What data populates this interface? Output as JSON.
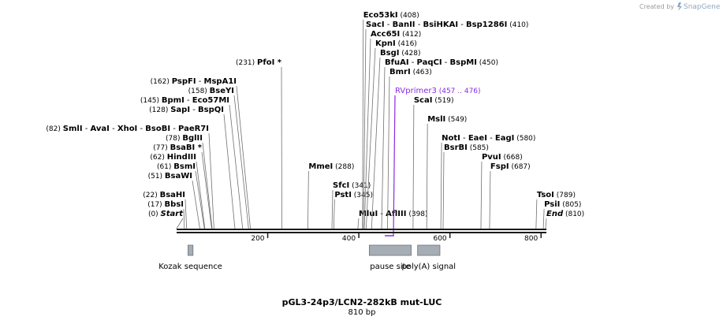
{
  "credit": {
    "prefix": "Created by",
    "brand": "SnapGene"
  },
  "title": "pGL3-24p3/LCN2-282kB mut-LUC",
  "length_label": "810 bp",
  "sequence": {
    "total": 810
  },
  "ticks": [
    200,
    400,
    600,
    800
  ],
  "sites": [
    {
      "names": [
        "Start"
      ],
      "pos": "(0)",
      "bp": 0,
      "row": 0,
      "num_first": true,
      "italic": true
    },
    {
      "names": [
        "BbsI"
      ],
      "pos": "(17)",
      "bp": 17,
      "row": 1,
      "num_first": true
    },
    {
      "names": [
        "BsaHI"
      ],
      "pos": "(22)",
      "bp": 22,
      "row": 2,
      "num_first": true
    },
    {
      "names": [
        "BsaWI"
      ],
      "pos": "(51)",
      "bp": 51,
      "row": 4,
      "num_first": true
    },
    {
      "names": [
        "BsmI"
      ],
      "pos": "(61)",
      "bp": 61,
      "row": 5,
      "num_first": true
    },
    {
      "names": [
        "HindIII"
      ],
      "pos": "(62)",
      "bp": 62,
      "row": 6,
      "num_first": true
    },
    {
      "names": [
        "BsaBI *"
      ],
      "pos": "(77)",
      "bp": 77,
      "row": 7,
      "num_first": true
    },
    {
      "names": [
        "BglII"
      ],
      "pos": "(78)",
      "bp": 78,
      "row": 8,
      "num_first": true
    },
    {
      "names": [
        "SmlI",
        "AvaI",
        "XhoI",
        "BsoBI",
        "PaeR7I"
      ],
      "pos": "(82)",
      "bp": 82,
      "row": 9,
      "num_first": true
    },
    {
      "names": [
        "SapI",
        "BspQI"
      ],
      "pos": "(128)",
      "bp": 128,
      "row": 11,
      "num_first": true
    },
    {
      "names": [
        "BpmI",
        "Eco57MI"
      ],
      "pos": "(145)",
      "bp": 145,
      "row": 12,
      "num_first": true
    },
    {
      "names": [
        "BseYI"
      ],
      "pos": "(158)",
      "bp": 158,
      "row": 13,
      "num_first": true
    },
    {
      "names": [
        "PspFI",
        "MspA1I"
      ],
      "pos": "(162)",
      "bp": 162,
      "row": 14,
      "num_first": true
    },
    {
      "names": [
        "PfoI *"
      ],
      "pos": "(231)",
      "bp": 231,
      "row": 16,
      "num_first": true
    },
    {
      "names": [
        "MmeI"
      ],
      "pos": "(288)",
      "bp": 288,
      "row": 5,
      "num_first": false
    },
    {
      "names": [
        "SfcI"
      ],
      "pos": "(341)",
      "bp": 341,
      "row": 3,
      "num_first": false
    },
    {
      "names": [
        "PstI"
      ],
      "pos": "(345)",
      "bp": 345,
      "row": 2,
      "num_first": false
    },
    {
      "names": [
        "MluI",
        "AflIII"
      ],
      "pos": "(398)",
      "bp": 398,
      "row": 0,
      "num_first": false
    },
    {
      "names": [
        "Eco53kI"
      ],
      "pos": "(408)",
      "bp": 408,
      "row": 21,
      "num_first": false
    },
    {
      "names": [
        "SacI",
        "BanII",
        "BsiHKAI",
        "Bsp1286I"
      ],
      "pos": "(410)",
      "bp": 410,
      "row": 20,
      "num_first": false
    },
    {
      "names": [
        "Acc65I"
      ],
      "pos": "(412)",
      "bp": 412,
      "row": 19,
      "num_first": false
    },
    {
      "names": [
        "KpnI"
      ],
      "pos": "(416)",
      "bp": 416,
      "row": 18,
      "num_first": false
    },
    {
      "names": [
        "BsgI"
      ],
      "pos": "(428)",
      "bp": 428,
      "row": 17,
      "num_first": false
    },
    {
      "names": [
        "BfuAI",
        "PaqCI",
        "BspMI"
      ],
      "pos": "(450)",
      "bp": 450,
      "row": 16,
      "num_first": false
    },
    {
      "names": [
        "BmrI"
      ],
      "pos": "(463)",
      "bp": 463,
      "row": 15,
      "num_first": false
    },
    {
      "names": [
        "ScaI"
      ],
      "pos": "(519)",
      "bp": 519,
      "row": 12,
      "num_first": false
    },
    {
      "names": [
        "MslI"
      ],
      "pos": "(549)",
      "bp": 549,
      "row": 10,
      "num_first": false
    },
    {
      "names": [
        "NotI",
        "EaeI",
        "EagI"
      ],
      "pos": "(580)",
      "bp": 580,
      "row": 8,
      "num_first": false
    },
    {
      "names": [
        "BsrBI"
      ],
      "pos": "(585)",
      "bp": 585,
      "row": 7,
      "num_first": false
    },
    {
      "names": [
        "PvuI"
      ],
      "pos": "(668)",
      "bp": 668,
      "row": 6,
      "num_first": false
    },
    {
      "names": [
        "FspI"
      ],
      "pos": "(687)",
      "bp": 687,
      "row": 5,
      "num_first": false
    },
    {
      "names": [
        "TsoI"
      ],
      "pos": "(789)",
      "bp": 789,
      "row": 2,
      "num_first": false
    },
    {
      "names": [
        "PsiI"
      ],
      "pos": "(805)",
      "bp": 805,
      "row": 1,
      "num_first": false
    },
    {
      "names": [
        "End"
      ],
      "pos": "(810)",
      "bp": 810,
      "row": 0,
      "num_first": false,
      "italic": true
    }
  ],
  "primer": {
    "name": "RVprimer3",
    "range": "(457 .. 476)",
    "start": 457,
    "end": 476,
    "row": 13,
    "color": "#8a2be2"
  },
  "features": [
    {
      "name": "Kozak sequence",
      "start": 25,
      "end": 36
    },
    {
      "name": "pause site",
      "start": 423,
      "end": 515
    },
    {
      "name": "poly(A) signal",
      "start": 529,
      "end": 578
    }
  ],
  "colors": {
    "backbone": "#1a1a1a",
    "feature_fill": "#a7adb5",
    "feature_stroke": "#6c727a",
    "site_line": "#707070"
  }
}
